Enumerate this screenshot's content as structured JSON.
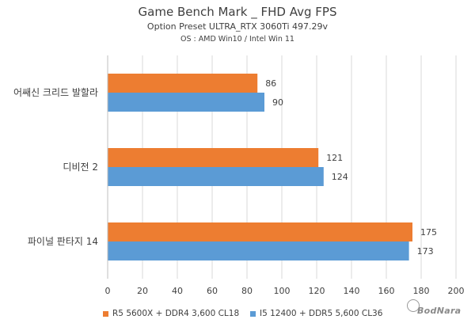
{
  "chart_data": {
    "type": "bar",
    "orientation": "horizontal",
    "title": "Game Bench Mark _ FHD Avg FPS",
    "subtitle": "Option Preset ULTRA_RTX 3060Ti 497.29v",
    "subtitle2": "OS : AMD Win10  / Intel  Win 11",
    "categories": [
      "어쌔신 크리드 발할라",
      "디비전 2",
      "파이널 판타지 14"
    ],
    "series": [
      {
        "name": "R5 5600X + DDR4 3,600 CL18",
        "color": "#ed7d31",
        "values": [
          86,
          121,
          175
        ]
      },
      {
        "name": "I5 12400 + DDR5 5,600 CL36",
        "color": "#5b9bd5",
        "values": [
          90,
          124,
          173
        ]
      }
    ],
    "xlim": [
      0,
      200
    ],
    "xticks": [
      "0",
      "20",
      "40",
      "60",
      "80",
      "100",
      "120",
      "140",
      "160",
      "180",
      "200"
    ],
    "grid": true,
    "legend_position": "bottom"
  },
  "watermark": "BodNara"
}
